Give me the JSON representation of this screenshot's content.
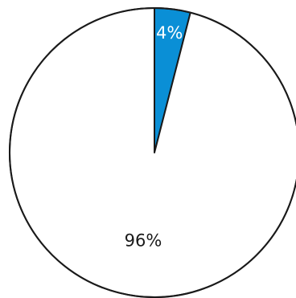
{
  "chart_data": {
    "type": "pie",
    "slices": [
      {
        "label": "4%",
        "value": 4,
        "color": "#0a8fd6",
        "label_color": "#ffffff"
      },
      {
        "label": "96%",
        "value": 96,
        "color": "#ffffff",
        "label_color": "#1a1a1a"
      }
    ],
    "start_angle_deg": 0,
    "direction": "clockwise",
    "outline_color": "#1a1a1a",
    "legend": "none"
  }
}
